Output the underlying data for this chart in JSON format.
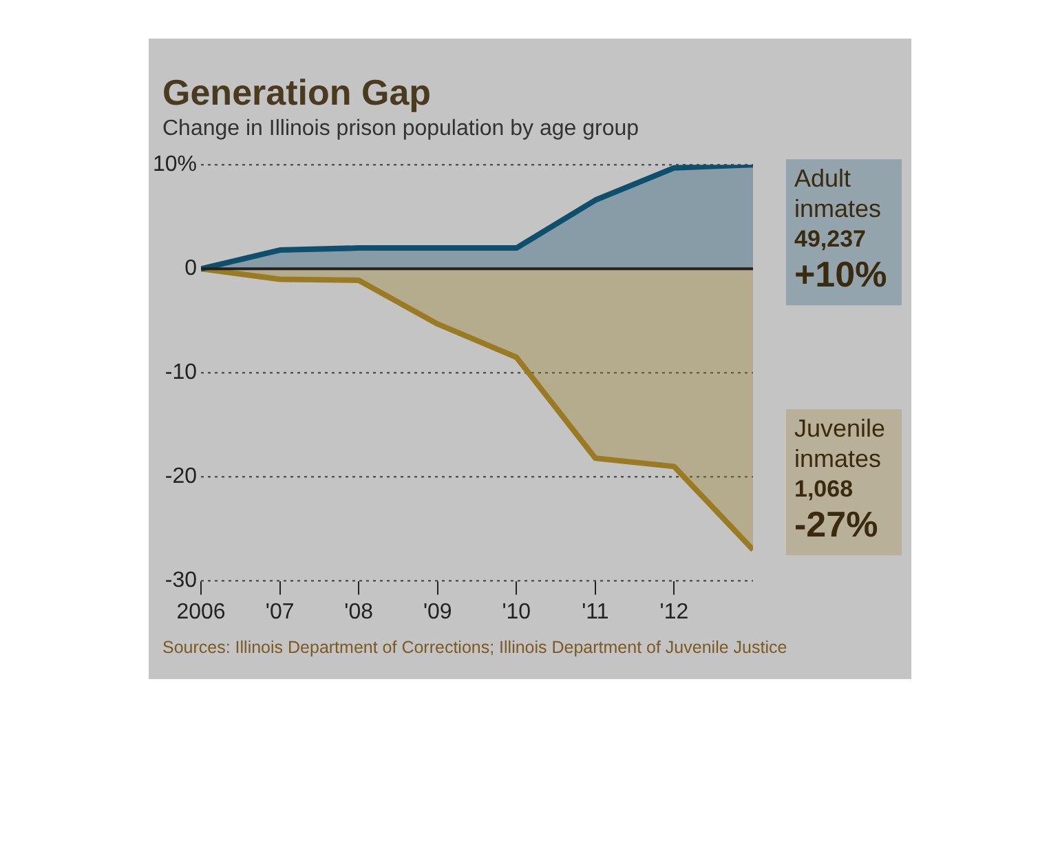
{
  "chart_data": {
    "type": "area",
    "title": "Generation Gap",
    "subtitle": "Change in Illinois prison population by age group",
    "x": [
      2006,
      2007,
      2008,
      2009,
      2010,
      2011,
      2012,
      2013
    ],
    "series": [
      {
        "name": "Adult inmates",
        "color": "#0e4f6e",
        "values": [
          0,
          1.8,
          2.0,
          2.0,
          2.0,
          6.6,
          9.7,
          10
        ],
        "value_labels": [
          null,
          null,
          null,
          null,
          null,
          null,
          null,
          "+10%"
        ]
      },
      {
        "name": "Juvenile inmates",
        "color": "#9a7a22",
        "values": [
          0,
          -1.0,
          -1.1,
          -5.3,
          -8.5,
          -18.2,
          -19.0,
          -27
        ],
        "value_labels": [
          null,
          null,
          null,
          null,
          null,
          null,
          null,
          "-27%"
        ]
      }
    ],
    "xlim": [
      2006,
      2013
    ],
    "xticks": [
      {
        "value": 2006,
        "label": "2006"
      },
      {
        "value": 2007,
        "label": "'07"
      },
      {
        "value": 2008,
        "label": "'08"
      },
      {
        "value": 2009,
        "label": "'09"
      },
      {
        "value": 2010,
        "label": "'10"
      },
      {
        "value": 2011,
        "label": "'11"
      },
      {
        "value": 2012,
        "label": "'12"
      }
    ],
    "ylim": [
      -30,
      10
    ],
    "yticks": [
      {
        "value": 10,
        "label": "10%"
      },
      0,
      -10,
      -20,
      -30
    ],
    "ref_lines": [
      {
        "axis": "y",
        "value": 0,
        "color": "#222222"
      }
    ],
    "grid": "y",
    "legend": false,
    "marker": "none",
    "line_style": "solid",
    "annotations": [
      "49,237",
      "1,068",
      "Sources: Illinois Department of Corrections; Illinois Department of Juvenile Justice"
    ]
  }
}
